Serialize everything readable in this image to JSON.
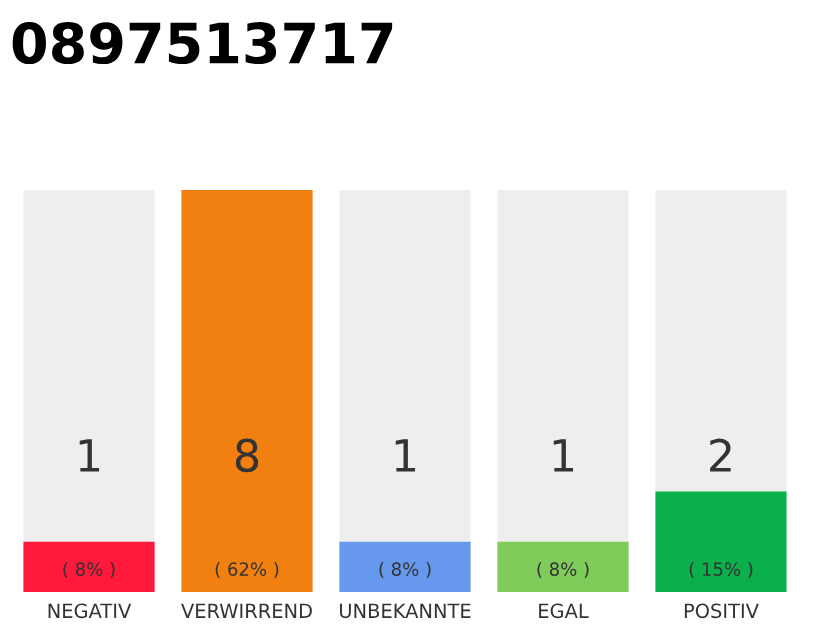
{
  "chart_data": {
    "type": "bar",
    "title": "0897513717",
    "categories": [
      "NEGATIV",
      "VERWIRREND",
      "UNBEKANNTE",
      "EGAL",
      "POSITIV"
    ],
    "values": [
      1,
      8,
      1,
      1,
      2
    ],
    "colors": [
      "#ff1a3c",
      "#f28010",
      "#6699ee",
      "#80cc5a",
      "#0cb04a"
    ],
    "data_labels": true,
    "annotations": [
      {
        "text": "( 8% )",
        "x": "NEGATIV",
        "y": 0
      },
      {
        "text": "( 62% )",
        "x": "VERWIRREND",
        "y": 0
      },
      {
        "text": "( 8% )",
        "x": "UNBEKANNTE",
        "y": 0
      },
      {
        "text": "( 8% )",
        "x": "EGAL",
        "y": 0
      },
      {
        "text": "( 15% )",
        "x": "POSITIV",
        "y": 0
      }
    ],
    "grid": false
  }
}
